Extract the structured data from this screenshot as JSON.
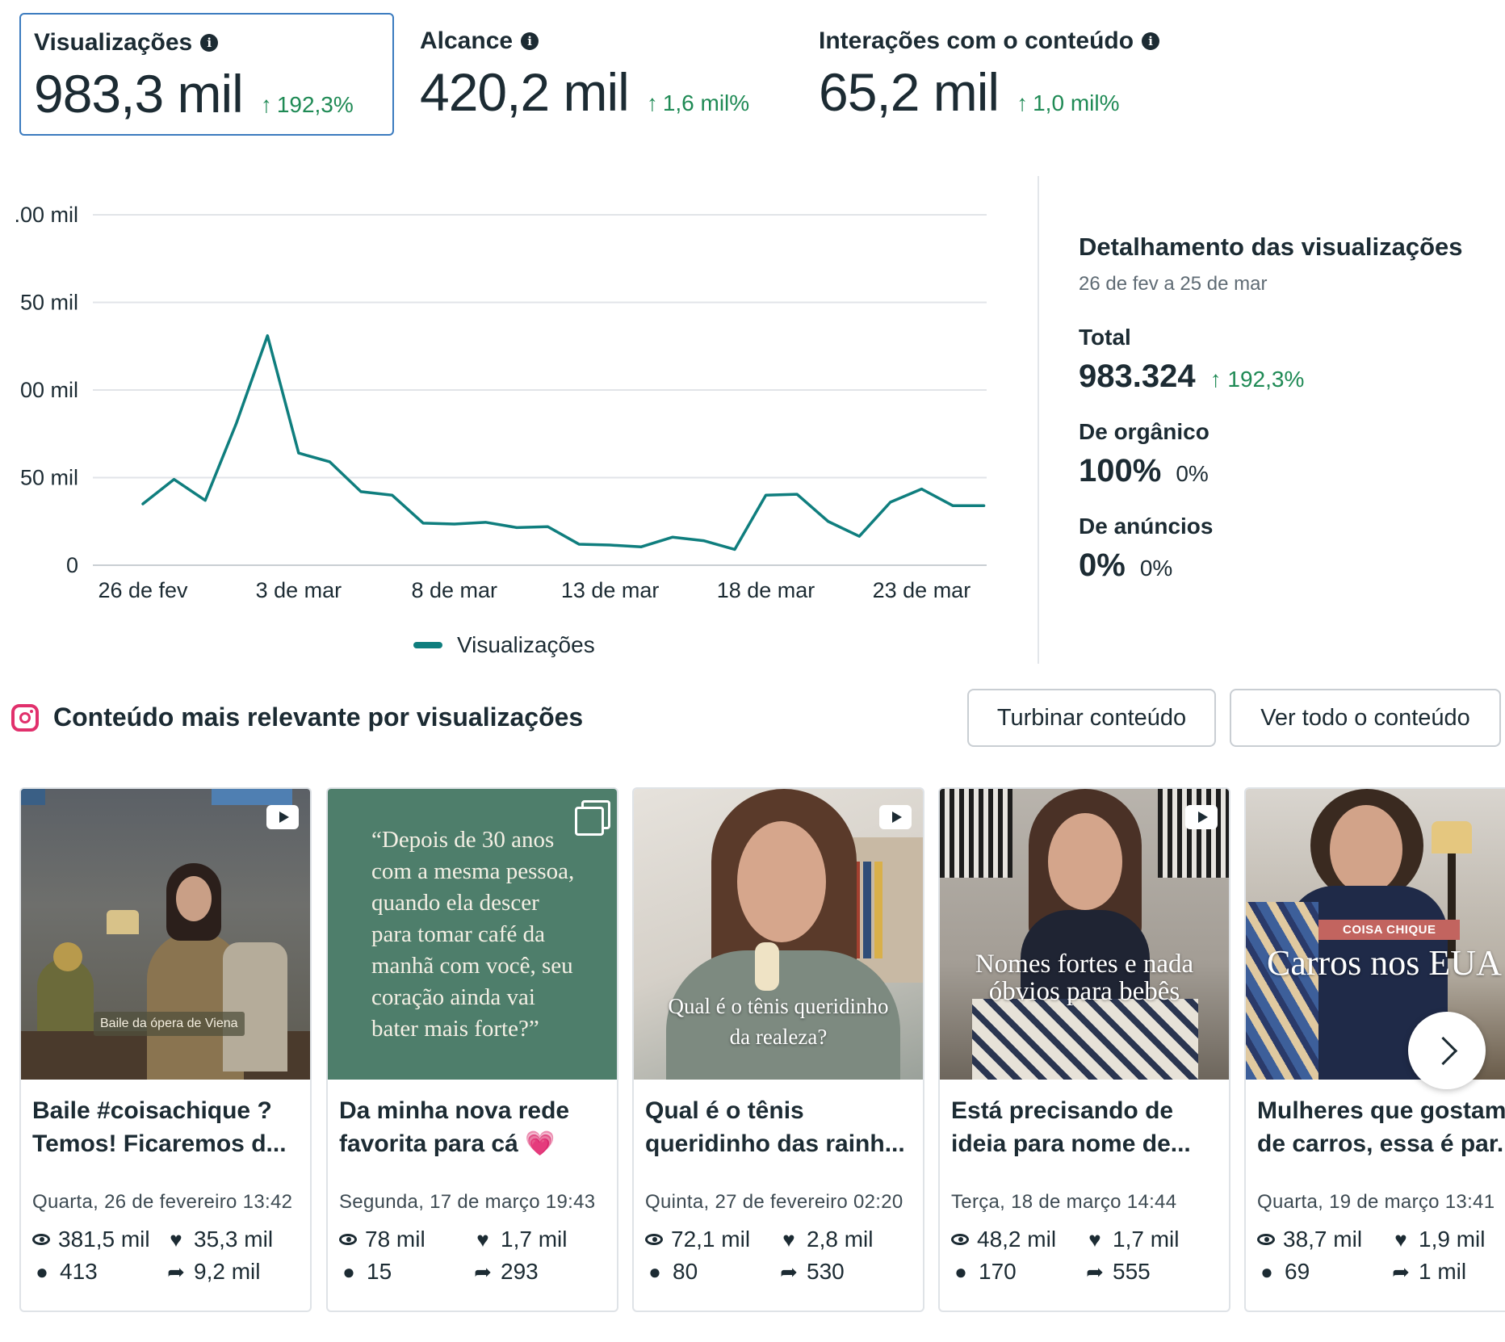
{
  "metrics": [
    {
      "label": "Visualizações",
      "value": "983,3 mil",
      "change": "192,3%",
      "selected": true
    },
    {
      "label": "Alcance",
      "value": "420,2 mil",
      "change": "1,6 mil%"
    },
    {
      "label": "Interações com o conteúdo",
      "value": "65,2 mil",
      "change": "1,0 mil%"
    }
  ],
  "colors": {
    "series": "#0f7e7e",
    "positive": "#1f8a55",
    "selected_border": "#3b7bbf"
  },
  "chart_data": {
    "type": "line",
    "y_tick_labels": [
      ".00 mil",
      "50 mil",
      "00 mil",
      "50 mil",
      "0"
    ],
    "ylim": [
      0,
      200000
    ],
    "x_tick_labels": [
      "26 de fev",
      "3 de mar",
      "8 de mar",
      "13 de mar",
      "18 de mar",
      "23 de mar"
    ],
    "x": [
      "26 de fev",
      "27 de fev",
      "28 de fev",
      "1 de mar",
      "2 de mar",
      "3 de mar",
      "4 de mar",
      "5 de mar",
      "6 de mar",
      "7 de mar",
      "8 de mar",
      "9 de mar",
      "10 de mar",
      "11 de mar",
      "12 de mar",
      "13 de mar",
      "14 de mar",
      "15 de mar",
      "16 de mar",
      "17 de mar",
      "18 de mar",
      "19 de mar",
      "20 de mar",
      "21 de mar",
      "22 de mar",
      "23 de mar",
      "24 de mar",
      "25 de mar"
    ],
    "series": [
      {
        "name": "Visualizações",
        "values": [
          35000,
          49000,
          37000,
          81000,
          131000,
          64000,
          59000,
          42000,
          40000,
          24000,
          23500,
          24500,
          21500,
          22000,
          12000,
          11500,
          10500,
          16000,
          14000,
          9000,
          40000,
          40500,
          25000,
          16500,
          36000,
          43500,
          34000,
          34000
        ]
      }
    ],
    "legend": "bottom",
    "grid": true
  },
  "legend_label": "Visualizações",
  "breakdown": {
    "title": "Detalhamento das visualizações",
    "range": "26 de fev a 25 de mar",
    "total_label": "Total",
    "total_value": "983.324",
    "total_change": "192,3%",
    "organic_label": "De orgânico",
    "organic_value": "100%",
    "organic_change": "0%",
    "ads_label": "De anúncios",
    "ads_value": "0%",
    "ads_change": "0%"
  },
  "section": {
    "title": "Conteúdo mais relevante por visualizações",
    "boost_label": "Turbinar conteúdo",
    "see_all_label": "Ver todo o conteúdo"
  },
  "cards": [
    {
      "title": "Baile #coisachique ? Temos! Ficaremos d...",
      "date": "Quarta, 26 de fevereiro 13:42",
      "views": "381,5 mil",
      "likes": "35,3 mil",
      "comments": "413",
      "shares": "9,2 mil",
      "overlay": "Baile da ópera de Viena",
      "media": "video"
    },
    {
      "title": "Da minha nova rede favorita para cá 💗",
      "date": "Segunda, 17 de março 19:43",
      "views": "78 mil",
      "likes": "1,7 mil",
      "comments": "15",
      "shares": "293",
      "overlay": "“Depois de 30 anos com a mesma pessoa, quando ela descer para tomar café da manhã com você, seu coração ainda vai bater mais forte?”",
      "media": "carousel"
    },
    {
      "title": "Qual é o tênis queridinho das rainh...",
      "date": "Quinta, 27 de fevereiro 02:20",
      "views": "72,1 mil",
      "likes": "2,8 mil",
      "comments": "80",
      "shares": "530",
      "overlay": "Qual é o tênis queridinho da realeza?",
      "media": "video"
    },
    {
      "title": "Está precisando de ideia para nome de...",
      "date": "Terça, 18 de março 14:44",
      "views": "48,2 mil",
      "likes": "1,7 mil",
      "comments": "170",
      "shares": "555",
      "overlay": "Nomes fortes e nada óbvios para bebês",
      "media": "video"
    },
    {
      "title": "Mulheres que gostam de carros, essa é par...",
      "date": "Quarta, 19 de março 13:41",
      "views": "38,7 mil",
      "likes": "1,9 mil",
      "comments": "69",
      "shares": "1 mil",
      "overlay": "Carros nos EUA",
      "tag": "COISA CHIQUE",
      "media": "video"
    }
  ]
}
